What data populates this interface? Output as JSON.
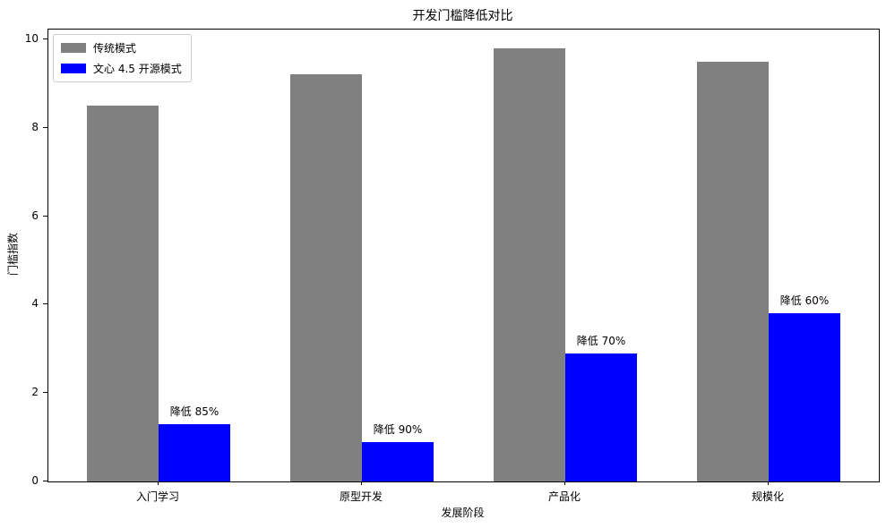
{
  "chart_data": {
    "type": "bar",
    "title": "开发门槛降低对比",
    "xlabel": "发展阶段",
    "ylabel": "门槛指数",
    "categories": [
      "入门学习",
      "原型开发",
      "产品化",
      "规模化"
    ],
    "series": [
      {
        "name": "传统模式",
        "color": "#808080",
        "values": [
          8.5,
          9.2,
          9.8,
          9.5
        ]
      },
      {
        "name": "文心 4.5 开源模式",
        "color": "#0000ff",
        "values": [
          1.3,
          0.9,
          2.9,
          3.8
        ]
      }
    ],
    "annotations": [
      "降低 85%",
      "降低 90%",
      "降低 70%",
      "降低 60%"
    ],
    "yticks": [
      "0",
      "2",
      "4",
      "6",
      "8",
      "10"
    ],
    "ytick_values": [
      0,
      2,
      4,
      6,
      8,
      10
    ],
    "ylim": [
      0,
      10.22
    ],
    "legend_position": "upper-left",
    "grid": false,
    "colors": {
      "spine": "#000000",
      "text": "#000000",
      "background": "#ffffff"
    }
  }
}
